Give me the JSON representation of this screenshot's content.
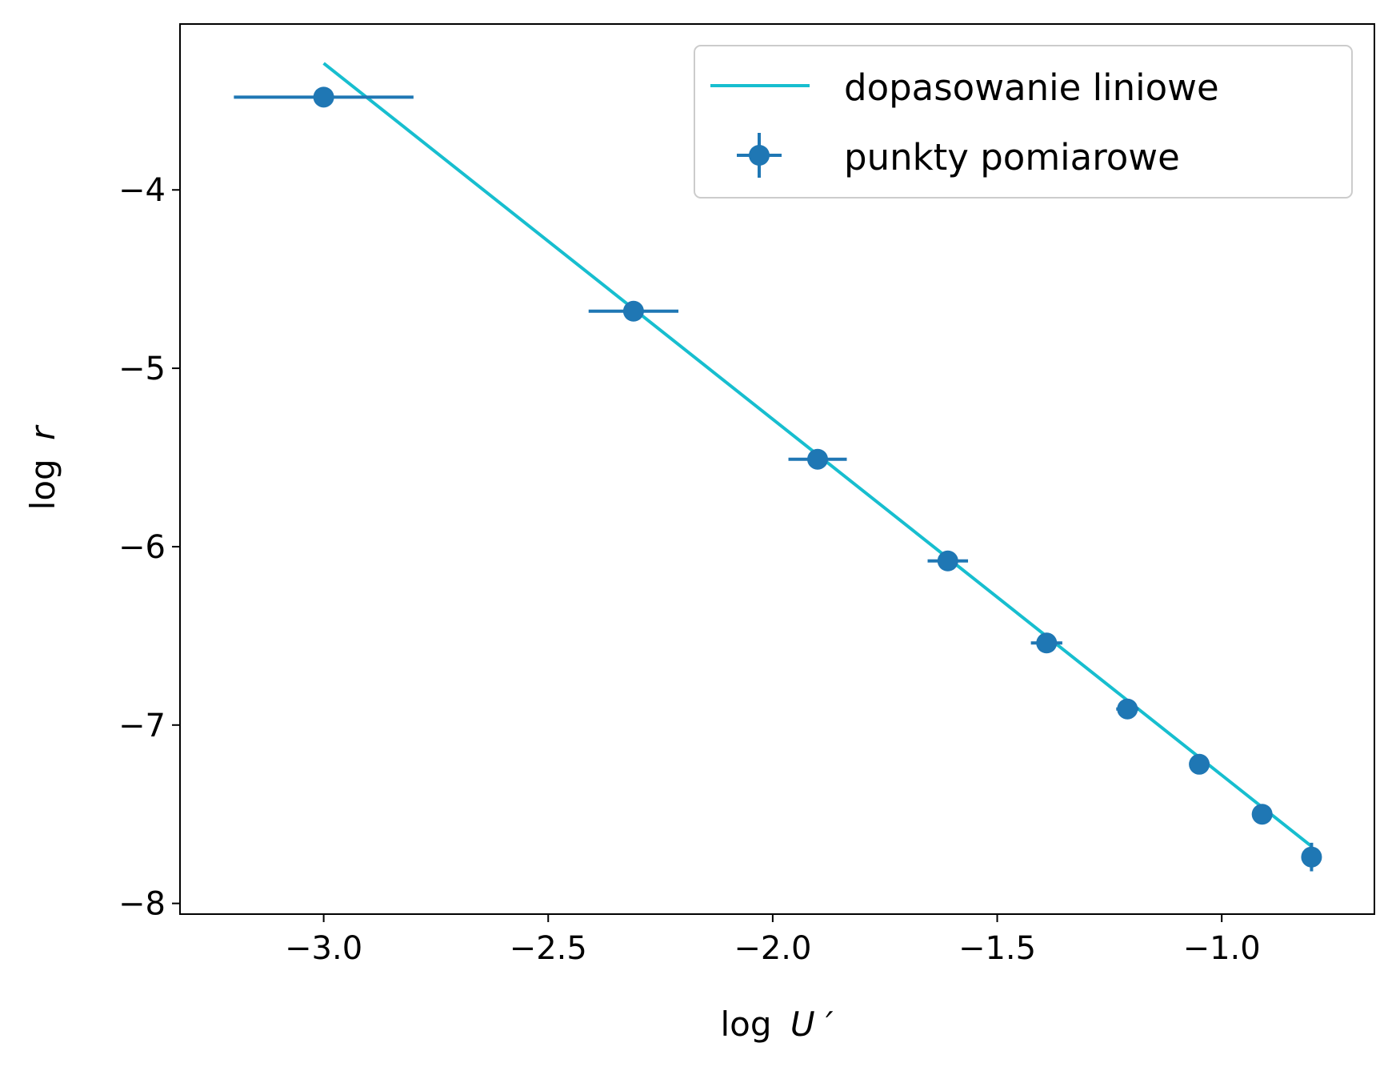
{
  "chart_data": {
    "type": "scatter",
    "xlabel_base": "log",
    "xlabel_var": "U",
    "xlabel_prime": "′",
    "ylabel_base": "log",
    "ylabel_var": "r",
    "xlim": [
      -3.32,
      -0.66
    ],
    "ylim": [
      -8.06,
      -3.07
    ],
    "xticks": [
      -3.0,
      -2.5,
      -2.0,
      -1.5,
      -1.0
    ],
    "xtick_labels": [
      "−3.0",
      "−2.5",
      "−2.0",
      "−1.5",
      "−1.0"
    ],
    "yticks": [
      -4,
      -5,
      -6,
      -7,
      -8
    ],
    "ytick_labels": [
      "−4",
      "−5",
      "−6",
      "−7",
      "−8"
    ],
    "grid": false,
    "legend_position": "top-right",
    "series": [
      {
        "name": "punkty pomiarowe",
        "kind": "errorbar",
        "color": "#1f77b4",
        "points": [
          {
            "x": -3.0,
            "y": -3.48,
            "xerr": 0.2,
            "yerr": 0.0
          },
          {
            "x": -2.31,
            "y": -4.68,
            "xerr": 0.1,
            "yerr": 0.0
          },
          {
            "x": -1.9,
            "y": -5.51,
            "xerr": 0.065,
            "yerr": 0.0
          },
          {
            "x": -1.61,
            "y": -6.08,
            "xerr": 0.045,
            "yerr": 0.0
          },
          {
            "x": -1.39,
            "y": -6.54,
            "xerr": 0.035,
            "yerr": 0.01
          },
          {
            "x": -1.21,
            "y": -6.91,
            "xerr": 0.025,
            "yerr": 0.02
          },
          {
            "x": -1.05,
            "y": -7.22,
            "xerr": 0.02,
            "yerr": 0.02
          },
          {
            "x": -0.91,
            "y": -7.5,
            "xerr": 0.01,
            "yerr": 0.03
          },
          {
            "x": -0.8,
            "y": -7.74,
            "xerr": 0.0,
            "yerr": 0.08
          }
        ]
      },
      {
        "name": "dopasowanie liniowe",
        "kind": "line",
        "color": "#17becf",
        "x": [
          -3.0,
          -0.8
        ],
        "y": [
          -3.29,
          -7.68
        ]
      }
    ]
  }
}
